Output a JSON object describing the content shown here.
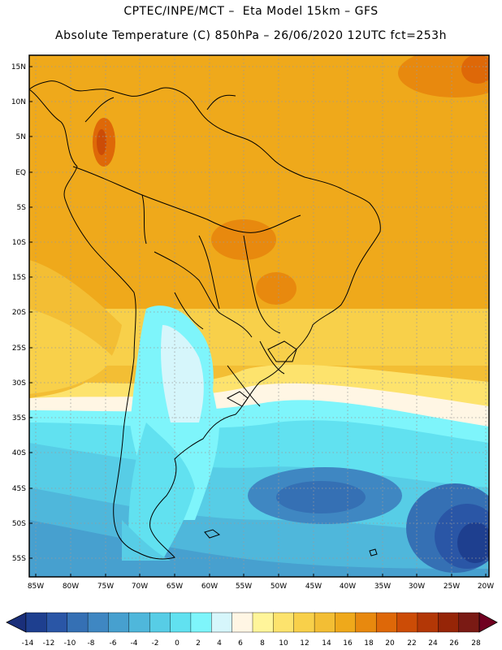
{
  "header": {
    "line1": "CPTEC/INPE/MCT –  Eta Model 15km – GFS",
    "line2": "Absolute Temperature (C) 850hPa – 26/06/2020 12UTC fct=253h"
  },
  "axes": {
    "lat_labels": [
      "15N",
      "10N",
      "5N",
      "EQ",
      "5S",
      "10S",
      "15S",
      "20S",
      "25S",
      "30S",
      "35S",
      "40S",
      "45S",
      "50S",
      "55S"
    ],
    "lon_labels": [
      "85W",
      "80W",
      "75W",
      "70W",
      "65W",
      "60W",
      "55W",
      "50W",
      "45W",
      "40W",
      "35W",
      "30W",
      "25W",
      "20W"
    ]
  },
  "colorbar": {
    "labels": [
      "-14",
      "-12",
      "-10",
      "-8",
      "-6",
      "-4",
      "-2",
      "0",
      "2",
      "4",
      "6",
      "8",
      "10",
      "12",
      "14",
      "16",
      "18",
      "20",
      "22",
      "24",
      "26",
      "28"
    ],
    "colors": [
      "#1e3f8f",
      "#2a56a6",
      "#3570b4",
      "#3f87c2",
      "#47a0cf",
      "#4fb7db",
      "#57cde6",
      "#61e1f0",
      "#7ef5fb",
      "#d6f6fb",
      "#fff6e4",
      "#fff59a",
      "#fde36d",
      "#f8d04a",
      "#f3be34",
      "#efa91b",
      "#e8890e",
      "#de6808",
      "#cc4c06",
      "#b33706",
      "#962507",
      "#7a1a14",
      "#700020"
    ],
    "left_arrow_color": "#1a2f7a"
  }
}
